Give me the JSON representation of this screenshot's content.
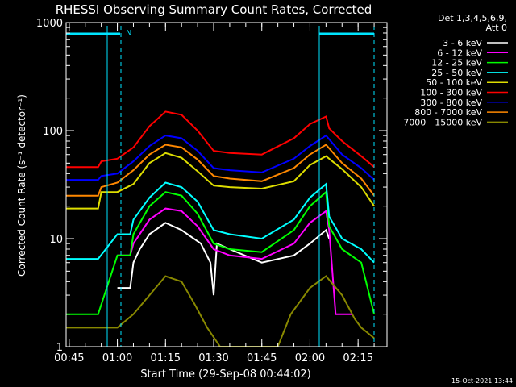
{
  "chart_data": {
    "type": "line",
    "title": "RHESSI Observing Summary Count Rates, Corrected",
    "xlabel": "Start Time (29-Sep-08 00:44:02)",
    "ylabel": "Corrected Count Rate (s⁻¹ detector⁻¹)",
    "y_scale": "log",
    "ylim": [
      1,
      1000
    ],
    "xlim": [
      "00:44:02",
      "02:24:00"
    ],
    "x_ticks": [
      "00:45",
      "01:00",
      "01:15",
      "01:30",
      "01:45",
      "02:00",
      "02:15"
    ],
    "y_ticks": [
      "1",
      "10",
      "100",
      "1000"
    ],
    "legend_header": [
      "Det 1,3,4,5,6,9,",
      "Att 0"
    ],
    "legend_position": "right",
    "footer": "15-Oct-2021 13:44",
    "annotation": "N",
    "series": [
      {
        "name": "3 - 6 keV",
        "color": "#ffffff",
        "x": [
          "00:44",
          "00:54",
          "01:00",
          "01:04",
          "01:05",
          "01:07",
          "01:10",
          "01:15",
          "01:20",
          "01:26",
          "01:29",
          "01:30",
          "01:31",
          "01:35",
          "01:45",
          "01:55",
          "02:00",
          "02:05",
          "02:06",
          "02:10",
          "02:16",
          "02:20"
        ],
        "y": [
          null,
          null,
          3.5,
          3.5,
          6,
          8,
          11,
          14,
          12,
          9,
          6,
          3,
          9,
          8,
          6,
          7,
          9,
          12,
          10,
          null,
          null,
          null
        ]
      },
      {
        "name": "6 - 12 keV",
        "color": "#ff00ff",
        "x": [
          "00:44",
          "00:54",
          "01:00",
          "01:04",
          "01:05",
          "01:10",
          "01:15",
          "01:20",
          "01:25",
          "01:30",
          "01:35",
          "01:45",
          "01:55",
          "02:00",
          "02:05",
          "02:06",
          "02:08",
          "02:13",
          "02:20"
        ],
        "y": [
          null,
          null,
          7,
          7,
          9,
          15,
          19,
          18,
          13,
          8,
          7,
          6.5,
          9,
          14,
          18,
          12,
          2,
          2,
          null
        ]
      },
      {
        "name": "12 - 25 keV",
        "color": "#00ff00",
        "x": [
          "00:44",
          "00:54",
          "01:00",
          "01:04",
          "01:05",
          "01:10",
          "01:15",
          "01:20",
          "01:25",
          "01:30",
          "01:35",
          "01:45",
          "01:55",
          "02:00",
          "02:05",
          "02:06",
          "02:10",
          "02:16",
          "02:20"
        ],
        "y": [
          2,
          2,
          7,
          7,
          11,
          20,
          27,
          25,
          17,
          9,
          8,
          7.5,
          12,
          20,
          27,
          13,
          8,
          6,
          2
        ]
      },
      {
        "name": "25 - 50 keV",
        "color": "#00ffff",
        "x": [
          "00:44",
          "00:54",
          "01:00",
          "01:04",
          "01:05",
          "01:10",
          "01:15",
          "01:20",
          "01:25",
          "01:30",
          "01:35",
          "01:45",
          "01:55",
          "02:00",
          "02:05",
          "02:06",
          "02:10",
          "02:16",
          "02:20"
        ],
        "y": [
          6.5,
          6.5,
          11,
          11,
          15,
          24,
          33,
          30,
          22,
          12,
          11,
          10,
          15,
          24,
          32,
          16,
          10,
          8,
          6
        ]
      },
      {
        "name": "50 - 100 keV",
        "color": "#dddd00",
        "x": [
          "00:44",
          "00:54",
          "00:55",
          "01:00",
          "01:05",
          "01:10",
          "01:15",
          "01:20",
          "01:25",
          "01:30",
          "01:35",
          "01:45",
          "01:55",
          "02:00",
          "02:05",
          "02:10",
          "02:16",
          "02:20"
        ],
        "y": [
          19,
          19,
          27,
          27,
          32,
          50,
          62,
          56,
          42,
          31,
          30,
          29,
          34,
          48,
          58,
          44,
          30,
          20
        ]
      },
      {
        "name": "100 - 300 keV",
        "color": "#ff0000",
        "x": [
          "00:44",
          "00:54",
          "00:55",
          "01:00",
          "01:05",
          "01:10",
          "01:15",
          "01:20",
          "01:25",
          "01:30",
          "01:35",
          "01:45",
          "01:55",
          "02:00",
          "02:05",
          "02:06",
          "02:10",
          "02:16",
          "02:20"
        ],
        "y": [
          46,
          46,
          52,
          55,
          70,
          110,
          150,
          140,
          100,
          65,
          62,
          60,
          85,
          115,
          135,
          105,
          80,
          58,
          46
        ]
      },
      {
        "name": "300 - 800 keV",
        "color": "#0000ff",
        "x": [
          "00:44",
          "00:54",
          "00:55",
          "01:00",
          "01:05",
          "01:10",
          "01:15",
          "01:20",
          "01:25",
          "01:30",
          "01:35",
          "01:45",
          "01:55",
          "02:00",
          "02:05",
          "02:10",
          "02:16",
          "02:20"
        ],
        "y": [
          35,
          35,
          38,
          40,
          52,
          72,
          90,
          85,
          65,
          45,
          43,
          41,
          55,
          72,
          90,
          60,
          45,
          35
        ]
      },
      {
        "name": "800 - 7000 keV",
        "color": "#ff8800",
        "x": [
          "00:44",
          "00:54",
          "00:55",
          "01:00",
          "01:05",
          "01:10",
          "01:15",
          "01:20",
          "01:25",
          "01:30",
          "01:35",
          "01:45",
          "01:55",
          "02:00",
          "02:05",
          "02:10",
          "02:16",
          "02:20"
        ],
        "y": [
          25,
          25,
          30,
          33,
          43,
          60,
          74,
          70,
          54,
          38,
          36,
          34,
          45,
          60,
          74,
          50,
          36,
          25
        ]
      },
      {
        "name": "7000 - 15000 keV",
        "color": "#888800",
        "x": [
          "00:44",
          "00:54",
          "01:00",
          "01:05",
          "01:10",
          "01:15",
          "01:20",
          "01:24",
          "01:28",
          "01:32",
          "01:50",
          "01:54",
          "02:00",
          "02:05",
          "02:10",
          "02:14",
          "02:16",
          "02:20"
        ],
        "y": [
          1.5,
          1.5,
          1.5,
          2,
          3,
          4.5,
          4,
          2.5,
          1.5,
          1,
          1,
          2,
          3.5,
          4.5,
          3,
          1.8,
          1.5,
          1.2
        ]
      }
    ]
  }
}
